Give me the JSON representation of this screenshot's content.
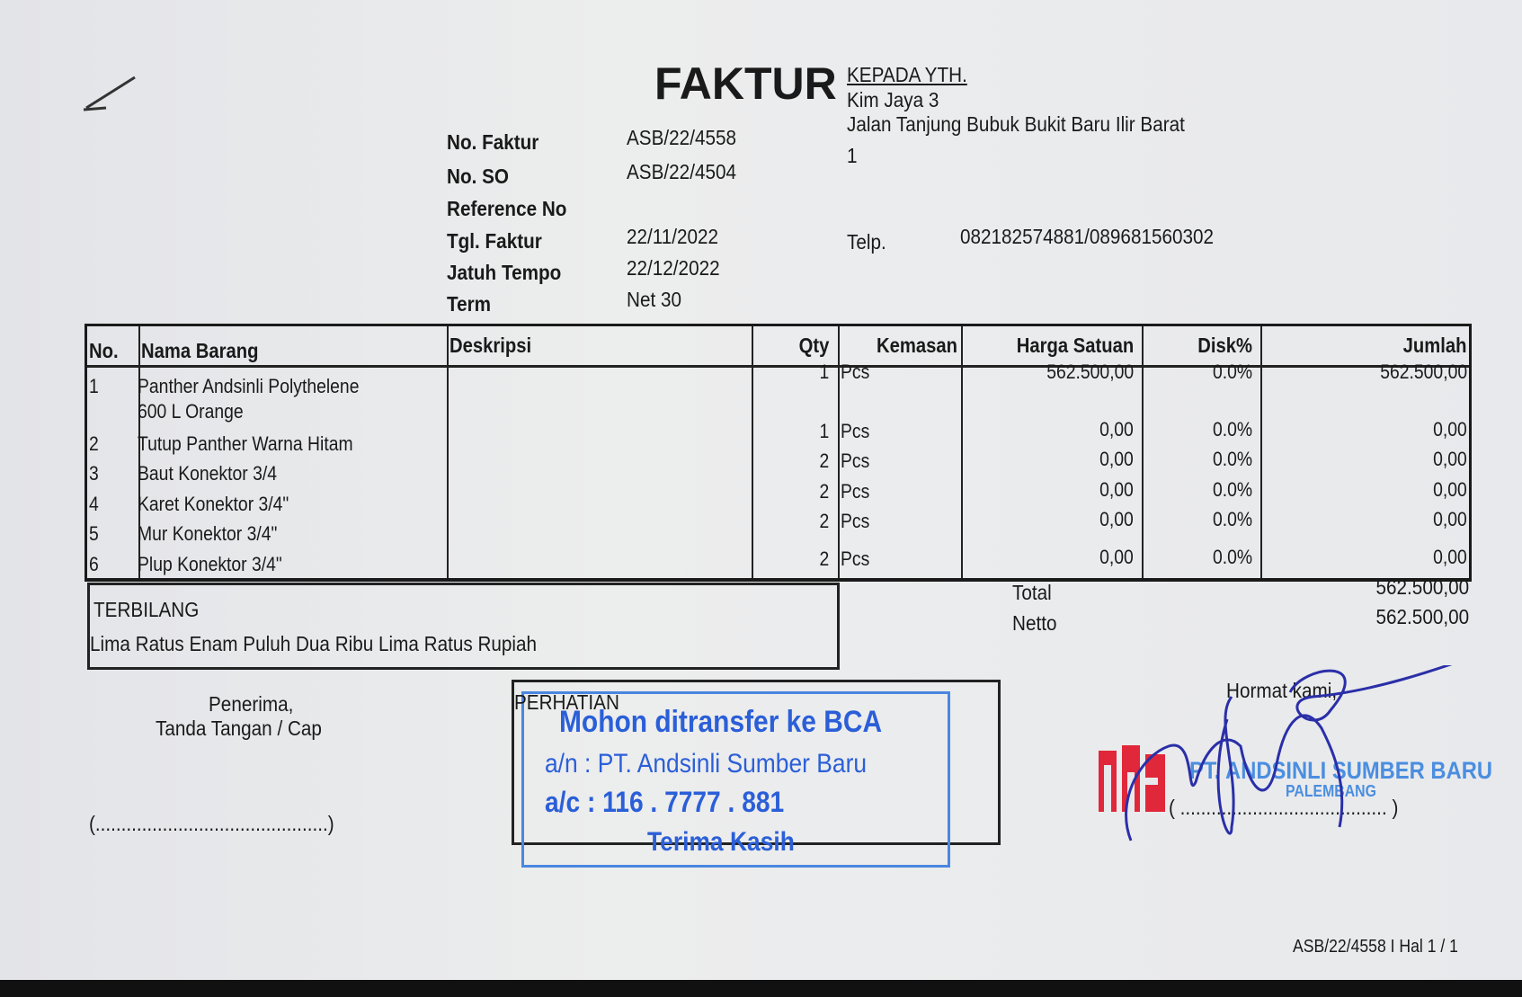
{
  "title": "FAKTUR",
  "info": [
    {
      "label": "No. Faktur",
      "value": "ASB/22/4558"
    },
    {
      "label": "No. SO",
      "value": "ASB/22/4504"
    },
    {
      "label": "Reference No",
      "value": ""
    },
    {
      "label": "Tgl. Faktur",
      "value": "22/11/2022"
    },
    {
      "label": "Jatuh Tempo",
      "value": "22/12/2022"
    },
    {
      "label": "Term",
      "value": "Net 30"
    }
  ],
  "customer": {
    "heading": "KEPADA YTH.",
    "name": "Kim Jaya 3",
    "address1": "Jalan Tanjung Bubuk Bukit Baru Ilir Barat",
    "address2": "1",
    "telp_label": "Telp.",
    "telp": "082182574881/089681560302"
  },
  "table": {
    "headers": [
      "No.",
      "Nama Barang",
      "Deskripsi",
      "Qty",
      "Kemasan",
      "Harga Satuan",
      "Disk%",
      "Jumlah"
    ],
    "rows": [
      {
        "no": "1",
        "name": "Panther Andsinli Polythelene",
        "name2": "600 L Orange",
        "desc": "",
        "qty": "1",
        "unit": "Pcs",
        "price": "562.500,00",
        "disc": "0.0%",
        "total": "562.500,00"
      },
      {
        "no": "2",
        "name": "Tutup Panther Warna Hitam",
        "desc": "",
        "qty": "1",
        "unit": "Pcs",
        "price": "0,00",
        "disc": "0.0%",
        "total": "0,00"
      },
      {
        "no": "3",
        "name": "Baut Konektor 3/4",
        "desc": "",
        "qty": "2",
        "unit": "Pcs",
        "price": "0,00",
        "disc": "0.0%",
        "total": "0,00"
      },
      {
        "no": "4",
        "name": "Karet Konektor 3/4\"",
        "desc": "",
        "qty": "2",
        "unit": "Pcs",
        "price": "0,00",
        "disc": "0.0%",
        "total": "0,00"
      },
      {
        "no": "5",
        "name": "Mur Konektor 3/4\"",
        "desc": "",
        "qty": "2",
        "unit": "Pcs",
        "price": "0,00",
        "disc": "0.0%",
        "total": "0,00"
      },
      {
        "no": "6",
        "name": "Plup Konektor 3/4\"",
        "desc": "",
        "qty": "2",
        "unit": "Pcs",
        "price": "0,00",
        "disc": "0.0%",
        "total": "0,00"
      }
    ]
  },
  "terbilang": {
    "label": "TERBILANG",
    "text": "Lima Ratus Enam Puluh Dua Ribu Lima Ratus Rupiah"
  },
  "summary": {
    "total_label": "Total",
    "total": "562.500,00",
    "netto_label": "Netto",
    "netto": "562.500,00"
  },
  "receiver": {
    "line1": "Penerima,",
    "line2": "Tanda Tangan / Cap",
    "sign_line": "(.............................................)"
  },
  "notice": {
    "label": "PERHATIAN",
    "line1": "Mohon ditransfer ke BCA",
    "line2": "a/n : PT. Andsinli Sumber Baru",
    "line3": "a/c : 116 . 7777 . 881",
    "line4": "Terima Kasih"
  },
  "sender": {
    "greeting": "Hormat kami,",
    "company": "PT. ANDSINLI SUMBER BARU",
    "city": "PALEMBANG",
    "logo": "ASB",
    "sign_line": "( ........................................ )"
  },
  "footer": "ASB/22/4558 I Hal 1 / 1",
  "colors": {
    "stamp_blue": "#2b5fd8",
    "logo_red": "#e0283a",
    "signature": "#2a2fa8"
  }
}
